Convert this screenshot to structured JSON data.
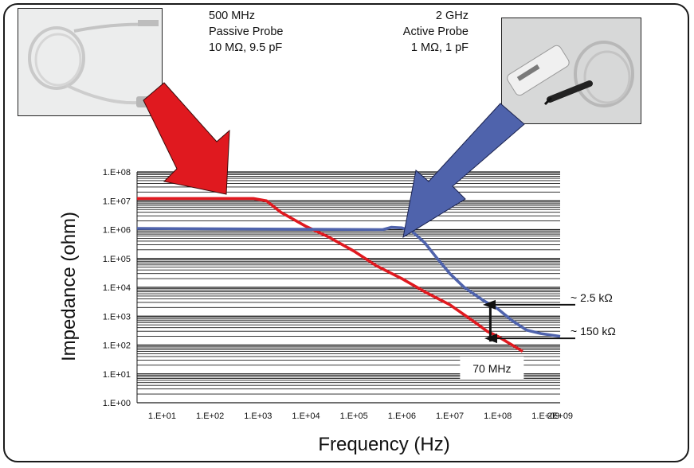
{
  "probes": {
    "passive": {
      "lines": [
        "500 MHz",
        "Passive Probe",
        "10 MΩ, 9.5 pF"
      ],
      "color": "#e0191f",
      "icon": "passive-probe-photo"
    },
    "active": {
      "lines": [
        "2 GHz",
        "Active Probe",
        "1 MΩ, 1 pF"
      ],
      "color": "#4f63ac",
      "icon": "active-probe-photo"
    }
  },
  "chart_data": {
    "type": "line",
    "xlabel": "Frequency (Hz)",
    "ylabel": "Impedance (ohm)",
    "x_scale": "log",
    "y_scale": "log",
    "xlim": [
      3,
      2000000000
    ],
    "ylim": [
      1,
      100000000
    ],
    "grid": true,
    "x_tick_labels": [
      "1.E+01",
      "1.E+02",
      "1.E+03",
      "1.E+04",
      "1.E+05",
      "1.E+06",
      "1.E+07",
      "1.E+08",
      "1.E+09",
      "2E+09"
    ],
    "x_tick_values": [
      10,
      100,
      1000,
      10000,
      100000,
      1000000,
      10000000,
      100000000,
      1000000000,
      2000000000
    ],
    "y_tick_labels": [
      "1.E+00",
      "1.E+01",
      "1.E+02",
      "1.E+03",
      "1.E+04",
      "1.E+05",
      "1.E+06",
      "1.E+07",
      "1.E+08"
    ],
    "y_tick_values": [
      1,
      10,
      100,
      1000,
      10000,
      100000,
      1000000,
      10000000,
      100000000
    ],
    "series": [
      {
        "color": "#e0191f",
        "points": [
          [
            3,
            12000000
          ],
          [
            800,
            12000000
          ],
          [
            1500,
            10000000
          ],
          [
            3000,
            4000000
          ],
          [
            10000,
            1300000
          ],
          [
            30000,
            550000
          ],
          [
            100000,
            180000
          ],
          [
            300000,
            55000
          ],
          [
            1000000,
            20000
          ],
          [
            3000000,
            7000
          ],
          [
            10000000,
            2500
          ],
          [
            30000000,
            700
          ],
          [
            60000000,
            300
          ],
          [
            100000000,
            200
          ],
          [
            200000000,
            100
          ],
          [
            330000000,
            60
          ]
        ]
      },
      {
        "color": "#4f63ac",
        "points": [
          [
            3,
            1100000
          ],
          [
            400000,
            1000000
          ],
          [
            600000,
            1200000
          ],
          [
            1000000,
            1150000
          ],
          [
            1600000,
            900000
          ],
          [
            3000000,
            350000
          ],
          [
            5000000,
            120000
          ],
          [
            10000000,
            30000
          ],
          [
            20000000,
            10000
          ],
          [
            50000000,
            3500
          ],
          [
            100000000,
            1800
          ],
          [
            200000000,
            700
          ],
          [
            400000000,
            330
          ],
          [
            800000000,
            250
          ],
          [
            2000000000,
            200
          ]
        ]
      }
    ],
    "annotations": [
      {
        "text": "~ 2.5 kΩ",
        "y": 2500
      },
      {
        "text": "~ 150 kΩ",
        "y": 170
      },
      {
        "text": "70 MHz",
        "x": 70000000
      }
    ]
  }
}
